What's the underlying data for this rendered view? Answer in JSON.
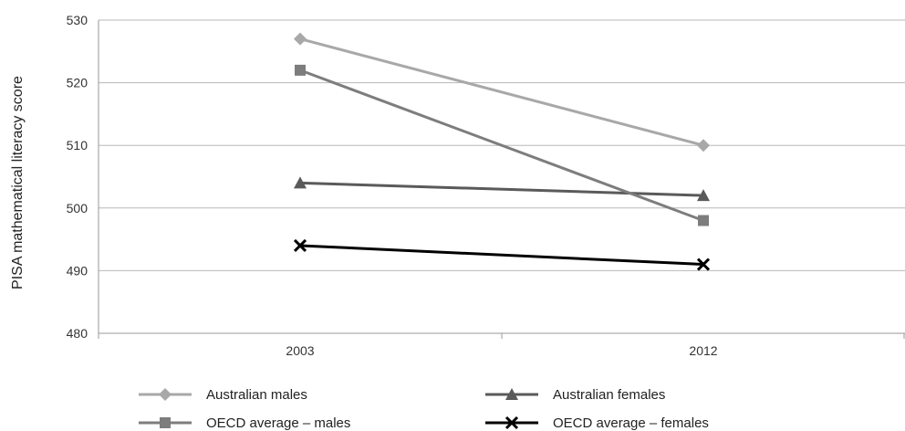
{
  "chart_data": {
    "type": "line",
    "title": "",
    "xlabel": "",
    "ylabel": "PISA mathematical literacy score",
    "categories": [
      "2003",
      "2012"
    ],
    "ylim": [
      480,
      530
    ],
    "yticks": [
      480,
      490,
      500,
      510,
      520,
      530
    ],
    "grid": true,
    "legend_position": "bottom",
    "series": [
      {
        "name": "Australian males",
        "values": [
          527,
          510
        ],
        "color": "#a8a8a8",
        "marker": "diamond"
      },
      {
        "name": "Australian females",
        "values": [
          504,
          502
        ],
        "color": "#5a5a5a",
        "marker": "triangle"
      },
      {
        "name": "OECD average – males",
        "values": [
          522,
          498
        ],
        "color": "#7d7d7d",
        "marker": "square"
      },
      {
        "name": "OECD average – females",
        "values": [
          494,
          491
        ],
        "color": "#000000",
        "marker": "x"
      }
    ]
  }
}
